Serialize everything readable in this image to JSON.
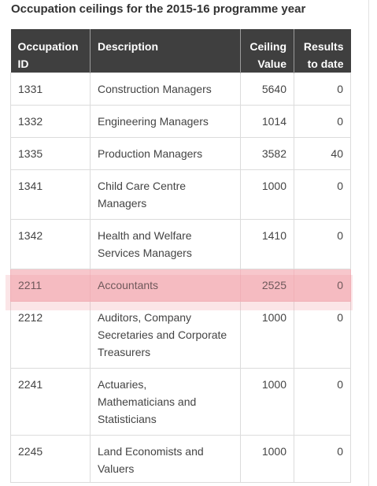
{
  "page": {
    "title": "Occupation ceilings for the 2015-16 programme year"
  },
  "table": {
    "headers": {
      "occupation_id": [
        "Occupation",
        "ID"
      ],
      "description": [
        "Description"
      ],
      "ceiling_value": [
        "Ceiling",
        "Value"
      ],
      "results_to_date": [
        "Results",
        "to date"
      ]
    },
    "rows": [
      {
        "id": "1331",
        "description": [
          "Construction Managers"
        ],
        "ceiling": "5640",
        "results": "0",
        "highlighted": false
      },
      {
        "id": "1332",
        "description": [
          "Engineering Managers"
        ],
        "ceiling": "1014",
        "results": "0",
        "highlighted": false
      },
      {
        "id": "1335",
        "description": [
          "Production Managers"
        ],
        "ceiling": "3582",
        "results": "40",
        "highlighted": false
      },
      {
        "id": "1341",
        "description": [
          "Child Care Centre",
          "Managers"
        ],
        "ceiling": "1000",
        "results": "0",
        "highlighted": false
      },
      {
        "id": "1342",
        "description": [
          "Health and Welfare",
          "Services Managers"
        ],
        "ceiling": "1410",
        "results": "0",
        "highlighted": false
      },
      {
        "id": "2211",
        "description": [
          "Accountants"
        ],
        "ceiling": "2525",
        "results": "0",
        "highlighted": true
      },
      {
        "id": "2212",
        "description": [
          "Auditors, Company",
          "Secretaries and Corporate",
          "Treasurers"
        ],
        "ceiling": "1000",
        "results": "0",
        "highlighted": false
      },
      {
        "id": "2241",
        "description": [
          "Actuaries,",
          "Mathematicians and",
          "Statisticians"
        ],
        "ceiling": "1000",
        "results": "0",
        "highlighted": false
      },
      {
        "id": "2245",
        "description": [
          "Land Economists and",
          "Valuers"
        ],
        "ceiling": "1000",
        "results": "0",
        "highlighted": false
      }
    ]
  },
  "colors": {
    "header_bg": "#3f3f3f",
    "header_text": "#ffffff",
    "highlight": "#f7c7cc",
    "border": "#dcdcdc"
  }
}
